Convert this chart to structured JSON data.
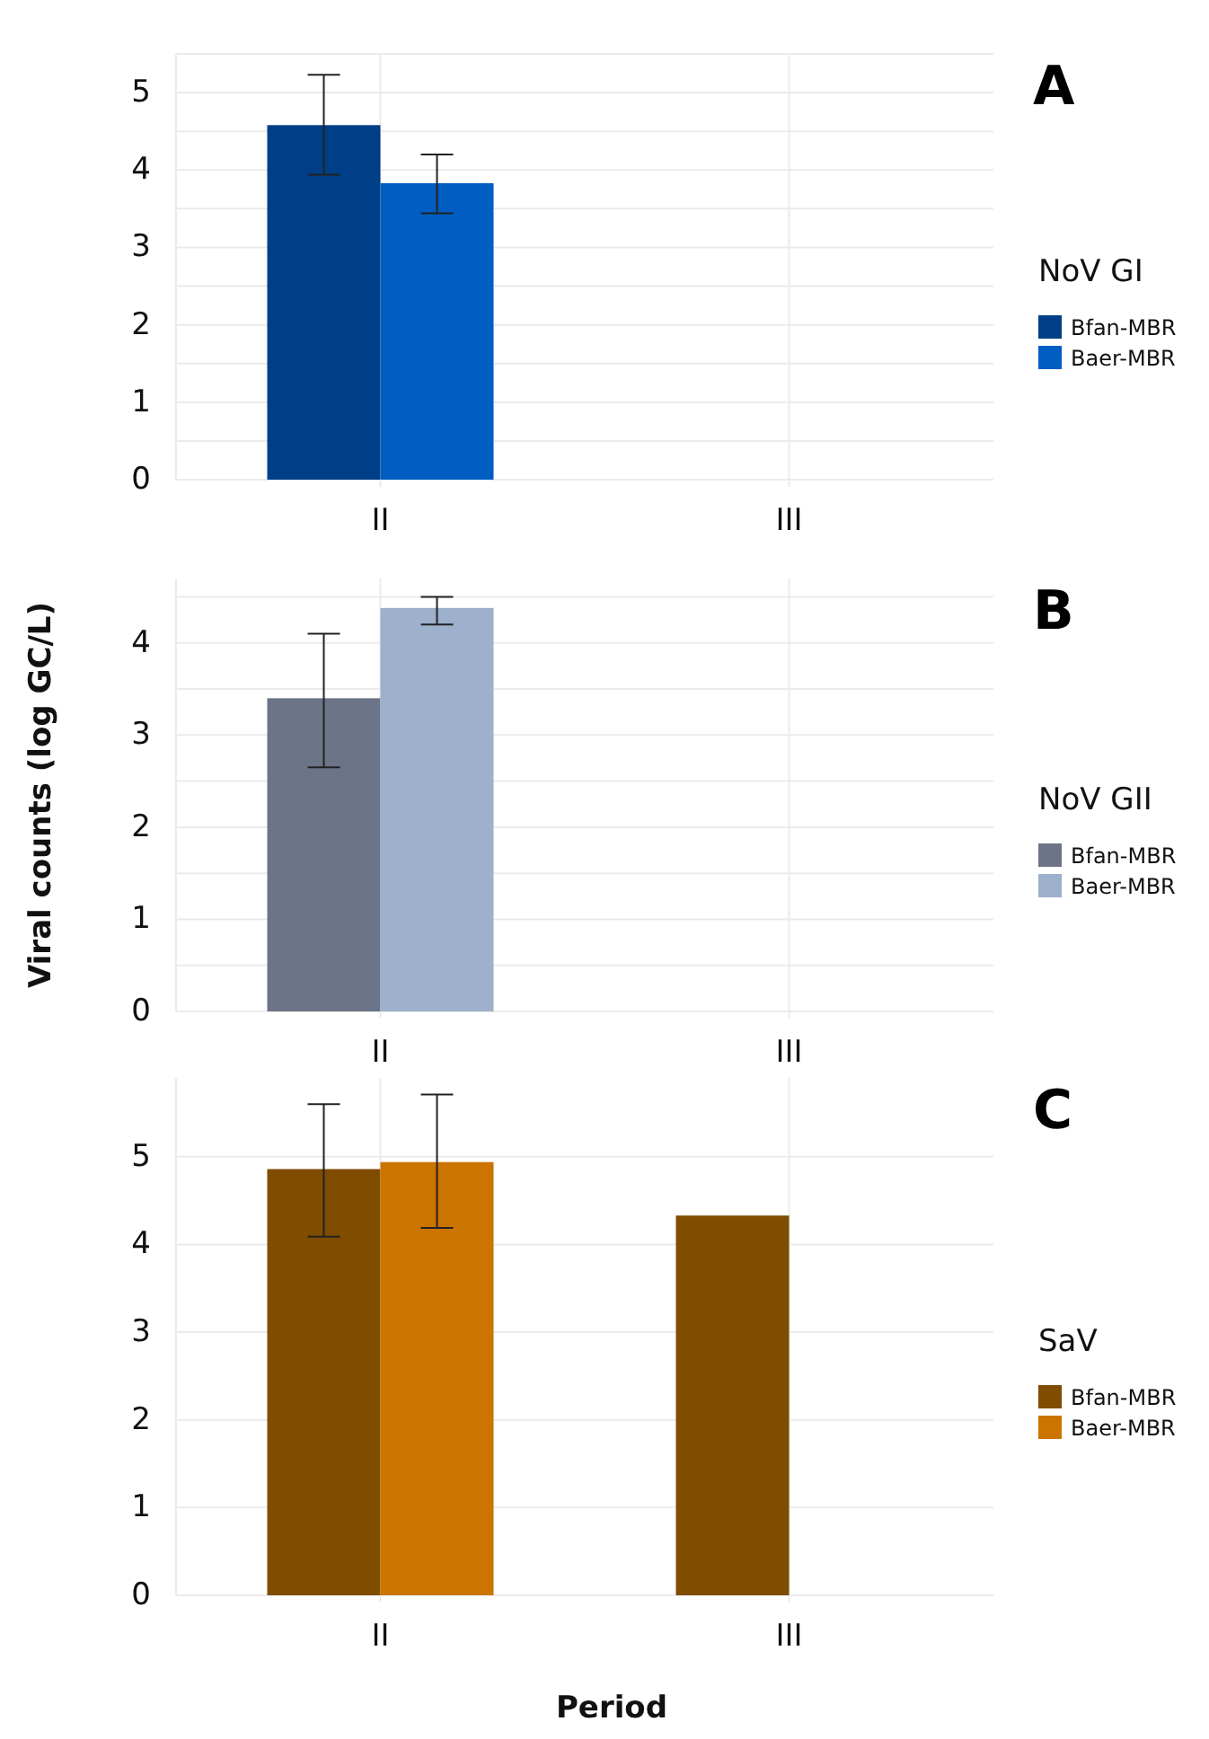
{
  "chart_data": [
    {
      "type": "bar",
      "annotations": [
        "A"
      ],
      "legend_title": "NoV GI",
      "categories": [
        "II",
        "III"
      ],
      "ylim": [
        0,
        5.5
      ],
      "yticks": [
        0,
        {
          "value": 0.5,
          "label": null
        },
        1,
        {
          "value": 1.5,
          "label": null
        },
        2,
        {
          "value": 2.5,
          "label": null
        },
        3,
        {
          "value": 3.5,
          "label": null
        },
        4,
        {
          "value": 4.5,
          "label": null
        },
        5,
        {
          "value": 5.5,
          "label": null
        }
      ],
      "grid": true,
      "legend": "right",
      "series": [
        {
          "name": "Bfan-MBR",
          "color": "#003f87",
          "values": [
            4.58,
            null
          ],
          "errors": [
            [
              3.94,
              5.23
            ],
            null
          ]
        },
        {
          "name": "Baer-MBR",
          "color": "#005ec2",
          "values": [
            3.83,
            null
          ],
          "errors": [
            [
              3.44,
              4.2
            ],
            null
          ]
        }
      ]
    },
    {
      "type": "bar",
      "annotations": [
        "B"
      ],
      "ylabel": "Viral counts (log GC/L)",
      "legend_title": "NoV GII",
      "categories": [
        "II",
        "III"
      ],
      "ylim": [
        0,
        4.7
      ],
      "yticks": [
        0,
        {
          "value": 0.5,
          "label": null
        },
        1,
        {
          "value": 1.5,
          "label": null
        },
        2,
        {
          "value": 2.5,
          "label": null
        },
        3,
        {
          "value": 3.5,
          "label": null
        },
        4,
        {
          "value": 4.5,
          "label": null
        }
      ],
      "grid": true,
      "legend": "right",
      "series": [
        {
          "name": "Bfan-MBR",
          "color": "#6c7587",
          "values": [
            3.4,
            null
          ],
          "errors": [
            [
              2.65,
              4.1
            ],
            null
          ]
        },
        {
          "name": "Baer-MBR",
          "color": "#9db0cc",
          "values": [
            4.38,
            null
          ],
          "errors": [
            [
              4.2,
              4.5
            ],
            null
          ]
        }
      ]
    },
    {
      "type": "bar",
      "annotations": [
        "C"
      ],
      "xlabel": "Period",
      "legend_title": "SaV",
      "categories": [
        "II",
        "III"
      ],
      "ylim": [
        0,
        5.9
      ],
      "yticks": [
        0,
        1,
        2,
        3,
        4,
        5
      ],
      "grid": true,
      "legend": "right",
      "series": [
        {
          "name": "Bfan-MBR",
          "color": "#7f4c00",
          "values": [
            4.86,
            4.33
          ],
          "errors": [
            [
              4.09,
              5.6
            ],
            null
          ]
        },
        {
          "name": "Baer-MBR",
          "color": "#cc7400",
          "values": [
            4.94,
            null
          ],
          "errors": [
            [
              4.19,
              5.71
            ],
            null
          ]
        }
      ]
    }
  ]
}
